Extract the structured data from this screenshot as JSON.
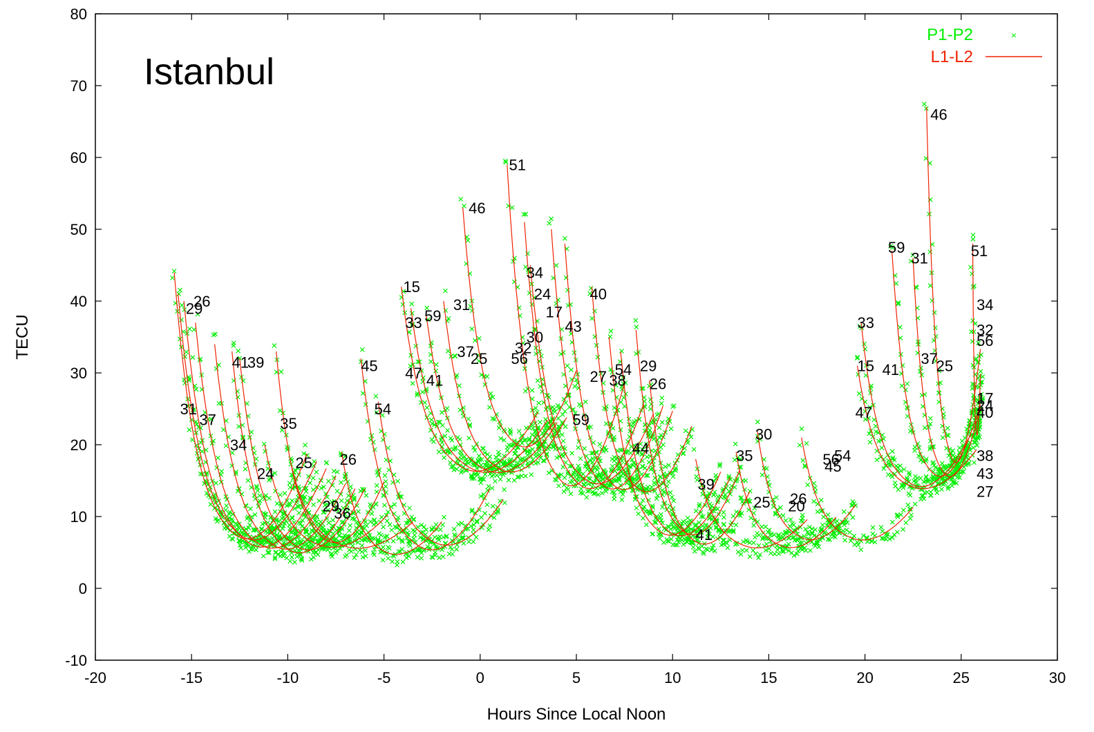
{
  "chart_data": {
    "type": "scatter",
    "title": "Istanbul",
    "xlabel": "Hours Since Local Noon",
    "ylabel": "TECU",
    "xlim": [
      -20,
      30
    ],
    "ylim": [
      -10,
      80
    ],
    "xticks": [
      -20,
      -15,
      -10,
      -5,
      0,
      5,
      10,
      15,
      20,
      25,
      30
    ],
    "yticks": [
      -10,
      0,
      10,
      20,
      30,
      40,
      50,
      60,
      70,
      80
    ],
    "grid": false,
    "legend_position": "top-right",
    "series": [
      {
        "name": "P1-P2",
        "marker": "x",
        "color": "#00ee00",
        "style": "points"
      },
      {
        "name": "L1-L2",
        "color": "#ee2200",
        "style": "lines"
      }
    ],
    "tracks": [
      {
        "start": -15.9,
        "end": -9.0,
        "peak": 44,
        "low": 5,
        "label": "31",
        "lx": -15.6,
        "ly": 25
      },
      {
        "start": -15.7,
        "end": -8.5,
        "peak": 41,
        "low": 5,
        "label": "29",
        "lx": -15.3,
        "ly": 39
      },
      {
        "start": -15.4,
        "end": -8.0,
        "peak": 40,
        "low": 4,
        "label": "26",
        "lx": -14.9,
        "ly": 40
      },
      {
        "start": -14.8,
        "end": -7.5,
        "peak": 37,
        "low": 4,
        "label": "37",
        "lx": -14.6,
        "ly": 23.5
      },
      {
        "start": -13.8,
        "end": -7.0,
        "peak": 34,
        "low": 4,
        "label": "34",
        "lx": -13.0,
        "ly": 20
      },
      {
        "start": -12.9,
        "end": -6.5,
        "peak": 33,
        "low": 3.5,
        "label": "41",
        "lx": -12.9,
        "ly": 31.5
      },
      {
        "start": -12.5,
        "end": -6.0,
        "peak": 32,
        "low": 4,
        "label": "39",
        "lx": -12.1,
        "ly": 31.5
      },
      {
        "start": -10.6,
        "end": -5.0,
        "peak": 33,
        "low": 5,
        "label": "35",
        "lx": -10.4,
        "ly": 23
      },
      {
        "start": -11.2,
        "end": -4.8,
        "peak": 20,
        "low": 5,
        "label": "24",
        "lx": -11.6,
        "ly": 16
      },
      {
        "start": -9.8,
        "end": -3.5,
        "peak": 17,
        "low": 5,
        "label": "25",
        "lx": -9.6,
        "ly": 17.5
      },
      {
        "start": -7.2,
        "end": -2.0,
        "peak": 19,
        "low": 4,
        "label": "26",
        "lx": -7.3,
        "ly": 18
      },
      {
        "start": -6.2,
        "end": 0.5,
        "peak": 32,
        "low": 4,
        "label": "45",
        "lx": -6.2,
        "ly": 31
      },
      {
        "start": -5.3,
        "end": 1.2,
        "peak": 26,
        "low": 5,
        "label": "54",
        "lx": -5.5,
        "ly": 25
      },
      {
        "start": -4.1,
        "end": 3.0,
        "peak": 42,
        "low": 15,
        "label": "15",
        "lx": -4.0,
        "ly": 42
      },
      {
        "start": -3.6,
        "end": 3.5,
        "peak": 39,
        "low": 15,
        "label": "33",
        "lx": -3.9,
        "ly": 37
      },
      {
        "start": -2.8,
        "end": 4.0,
        "peak": 38,
        "low": 15,
        "label": "59",
        "lx": -2.9,
        "ly": 38
      },
      {
        "start": -1.9,
        "end": 4.5,
        "peak": 40,
        "low": 15,
        "label": "31",
        "lx": -1.4,
        "ly": 39.5
      },
      {
        "start": -0.9,
        "end": 5.0,
        "peak": 53,
        "low": 18,
        "label": "46",
        "lx": -0.6,
        "ly": 53
      },
      {
        "start": 1.4,
        "end": 7.5,
        "peak": 59,
        "low": 12,
        "label": "51",
        "lx": 1.5,
        "ly": 59
      },
      {
        "start": 2.3,
        "end": 8.5,
        "peak": 51,
        "low": 12,
        "label": "34",
        "lx": 2.4,
        "ly": 44
      },
      {
        "start": 2.6,
        "end": 9.0,
        "peak": 45,
        "low": 13,
        "label": "24",
        "lx": 2.8,
        "ly": 41
      },
      {
        "start": 3.7,
        "end": 9.5,
        "peak": 50,
        "low": 12,
        "label": "17",
        "lx": 3.4,
        "ly": 38.5
      },
      {
        "start": 4.4,
        "end": 10.0,
        "peak": 48,
        "low": 12,
        "label": "43",
        "lx": 4.4,
        "ly": 36.5
      },
      {
        "start": 5.8,
        "end": 11.0,
        "peak": 42,
        "low": 12,
        "label": "40",
        "lx": 5.7,
        "ly": 41
      },
      {
        "start": 6.7,
        "end": 12.5,
        "peak": 35,
        "low": 6,
        "label": "27",
        "lx": 5.7,
        "ly": 29.5
      },
      {
        "start": 7.3,
        "end": 13.0,
        "peak": 33,
        "low": 6,
        "label": "54",
        "lx": 7.0,
        "ly": 30.5
      },
      {
        "start": 8.1,
        "end": 13.5,
        "peak": 36,
        "low": 6,
        "label": "29",
        "lx": 8.3,
        "ly": 31
      },
      {
        "start": 8.8,
        "end": 14.0,
        "peak": 29,
        "low": 5,
        "label": "26",
        "lx": 8.8,
        "ly": 28.5
      },
      {
        "start": 11.2,
        "end": 17.0,
        "peak": 18,
        "low": 5,
        "label": "39",
        "lx": 11.3,
        "ly": 14.5
      },
      {
        "start": 13.3,
        "end": 18.5,
        "peak": 19,
        "low": 5,
        "label": "35",
        "lx": 13.3,
        "ly": 18.5
      },
      {
        "start": 14.4,
        "end": 19.5,
        "peak": 22,
        "low": 6,
        "label": "30",
        "lx": 14.3,
        "ly": 21.5
      },
      {
        "start": 16.7,
        "end": 22.5,
        "peak": 21,
        "low": 6,
        "label": "26",
        "lx": 16.1,
        "ly": 12.5
      },
      {
        "start": 19.8,
        "end": 25.5,
        "peak": 37,
        "low": 13,
        "label": "33",
        "lx": 19.6,
        "ly": 37
      },
      {
        "start": 19.6,
        "end": 25.8,
        "peak": 31,
        "low": 13,
        "label": "15",
        "lx": 19.6,
        "ly": 31
      },
      {
        "start": 21.4,
        "end": 26.0,
        "peak": 47,
        "low": 14,
        "label": "59",
        "lx": 21.2,
        "ly": 47.5
      },
      {
        "start": 22.5,
        "end": 26.0,
        "peak": 46,
        "low": 14,
        "label": "31",
        "lx": 22.4,
        "ly": 46
      },
      {
        "start": 23.2,
        "end": 26.0,
        "peak": 67,
        "low": 15,
        "label": "46",
        "lx": 23.4,
        "ly": 66
      },
      {
        "start": 25.6,
        "end": 26.0,
        "peak": 48,
        "low": 20,
        "label": "51",
        "lx": 25.5,
        "ly": 47
      }
    ],
    "annotations": [
      {
        "text": "P1-P2",
        "color": "#00ee00"
      },
      {
        "text": "L1-L2",
        "color": "#ee2200"
      },
      {
        "text": "31",
        "x": -15.6,
        "y": 25
      },
      {
        "text": "29",
        "x": -15.3,
        "y": 39
      },
      {
        "text": "26",
        "x": -14.9,
        "y": 40
      },
      {
        "text": "37",
        "x": -14.6,
        "y": 23.5
      },
      {
        "text": "34",
        "x": -13.0,
        "y": 20
      },
      {
        "text": "41",
        "x": -12.9,
        "y": 31.5
      },
      {
        "text": "39",
        "x": -12.1,
        "y": 31.5
      },
      {
        "text": "35",
        "x": -10.4,
        "y": 23
      },
      {
        "text": "24",
        "x": -11.6,
        "y": 16
      },
      {
        "text": "25",
        "x": -9.6,
        "y": 17.5
      },
      {
        "text": "26",
        "x": -7.3,
        "y": 18
      },
      {
        "text": "29",
        "x": -8.2,
        "y": 11.5
      },
      {
        "text": "36",
        "x": -7.6,
        "y": 10.5
      },
      {
        "text": "45",
        "x": -6.2,
        "y": 31
      },
      {
        "text": "54",
        "x": -5.5,
        "y": 25
      },
      {
        "text": "15",
        "x": -4.0,
        "y": 42
      },
      {
        "text": "33",
        "x": -3.9,
        "y": 37
      },
      {
        "text": "59",
        "x": -2.9,
        "y": 38
      },
      {
        "text": "31",
        "x": -1.4,
        "y": 39.5
      },
      {
        "text": "47",
        "x": -3.9,
        "y": 30
      },
      {
        "text": "41",
        "x": -2.8,
        "y": 29
      },
      {
        "text": "37",
        "x": -1.2,
        "y": 33
      },
      {
        "text": "25",
        "x": -0.5,
        "y": 32
      },
      {
        "text": "46",
        "x": -0.6,
        "y": 53
      },
      {
        "text": "51",
        "x": 1.5,
        "y": 59
      },
      {
        "text": "34",
        "x": 2.4,
        "y": 44
      },
      {
        "text": "24",
        "x": 2.8,
        "y": 41
      },
      {
        "text": "17",
        "x": 3.4,
        "y": 38.5
      },
      {
        "text": "43",
        "x": 4.4,
        "y": 36.5
      },
      {
        "text": "40",
        "x": 5.7,
        "y": 41
      },
      {
        "text": "32",
        "x": 1.8,
        "y": 33.5
      },
      {
        "text": "30",
        "x": 2.4,
        "y": 35
      },
      {
        "text": "56",
        "x": 1.6,
        "y": 32
      },
      {
        "text": "27",
        "x": 5.7,
        "y": 29.5
      },
      {
        "text": "38",
        "x": 6.7,
        "y": 29
      },
      {
        "text": "54",
        "x": 7.0,
        "y": 30.5
      },
      {
        "text": "29",
        "x": 8.3,
        "y": 31
      },
      {
        "text": "26",
        "x": 8.8,
        "y": 28.5
      },
      {
        "text": "59",
        "x": 4.8,
        "y": 23.5
      },
      {
        "text": "44",
        "x": 7.9,
        "y": 19.5
      },
      {
        "text": "39",
        "x": 11.3,
        "y": 14.5
      },
      {
        "text": "41",
        "x": 11.2,
        "y": 7.5
      },
      {
        "text": "35",
        "x": 13.3,
        "y": 18.5
      },
      {
        "text": "30",
        "x": 14.3,
        "y": 21.5
      },
      {
        "text": "25",
        "x": 14.2,
        "y": 12
      },
      {
        "text": "26",
        "x": 16.1,
        "y": 12.5
      },
      {
        "text": "20",
        "x": 16.0,
        "y": 11.5
      },
      {
        "text": "56",
        "x": 17.8,
        "y": 18
      },
      {
        "text": "54",
        "x": 18.4,
        "y": 18.5
      },
      {
        "text": "45",
        "x": 17.9,
        "y": 17
      },
      {
        "text": "33",
        "x": 19.6,
        "y": 37
      },
      {
        "text": "15",
        "x": 19.6,
        "y": 31
      },
      {
        "text": "41",
        "x": 20.9,
        "y": 30.5
      },
      {
        "text": "47",
        "x": 19.5,
        "y": 24.5
      },
      {
        "text": "59",
        "x": 21.2,
        "y": 47.5
      },
      {
        "text": "31",
        "x": 22.4,
        "y": 46
      },
      {
        "text": "37",
        "x": 22.9,
        "y": 32
      },
      {
        "text": "25",
        "x": 23.7,
        "y": 31
      },
      {
        "text": "46",
        "x": 23.4,
        "y": 66
      },
      {
        "text": "51",
        "x": 25.5,
        "y": 47
      },
      {
        "text": "34",
        "x": 25.8,
        "y": 39.5
      },
      {
        "text": "32",
        "x": 25.8,
        "y": 36
      },
      {
        "text": "56",
        "x": 25.8,
        "y": 34.5
      },
      {
        "text": "17",
        "x": 25.8,
        "y": 26.5
      },
      {
        "text": "24",
        "x": 25.8,
        "y": 25.5
      },
      {
        "text": "40",
        "x": 25.8,
        "y": 24.5
      },
      {
        "text": "38",
        "x": 25.8,
        "y": 18.5
      },
      {
        "text": "43",
        "x": 25.8,
        "y": 16
      },
      {
        "text": "27",
        "x": 25.8,
        "y": 13.5
      }
    ]
  }
}
